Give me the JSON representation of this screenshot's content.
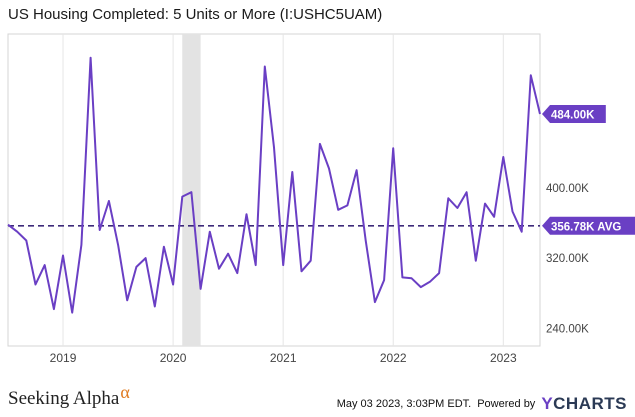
{
  "chart_data": {
    "type": "line",
    "title": "US Housing Completed: 5 Units or More (I:USHC5UAM)",
    "series": [
      {
        "values": [
          {
            "x": "2018-07",
            "y": 358
          },
          {
            "x": "2018-08",
            "y": 350
          },
          {
            "x": "2018-09",
            "y": 340
          },
          {
            "x": "2018-10",
            "y": 290
          },
          {
            "x": "2018-11",
            "y": 312
          },
          {
            "x": "2018-12",
            "y": 262
          },
          {
            "x": "2019-01",
            "y": 323
          },
          {
            "x": "2019-02",
            "y": 258
          },
          {
            "x": "2019-03",
            "y": 335
          },
          {
            "x": "2019-04",
            "y": 548
          },
          {
            "x": "2019-05",
            "y": 352
          },
          {
            "x": "2019-06",
            "y": 385
          },
          {
            "x": "2019-07",
            "y": 335
          },
          {
            "x": "2019-08",
            "y": 272
          },
          {
            "x": "2019-09",
            "y": 310
          },
          {
            "x": "2019-10",
            "y": 320
          },
          {
            "x": "2019-11",
            "y": 265
          },
          {
            "x": "2019-12",
            "y": 333
          },
          {
            "x": "2020-01",
            "y": 290
          },
          {
            "x": "2020-02",
            "y": 390
          },
          {
            "x": "2020-03",
            "y": 395
          },
          {
            "x": "2020-04",
            "y": 285
          },
          {
            "x": "2020-05",
            "y": 350
          },
          {
            "x": "2020-06",
            "y": 308
          },
          {
            "x": "2020-07",
            "y": 325
          },
          {
            "x": "2020-08",
            "y": 303
          },
          {
            "x": "2020-09",
            "y": 370
          },
          {
            "x": "2020-10",
            "y": 312
          },
          {
            "x": "2020-11",
            "y": 538
          },
          {
            "x": "2020-12",
            "y": 446
          },
          {
            "x": "2021-01",
            "y": 312
          },
          {
            "x": "2021-02",
            "y": 418
          },
          {
            "x": "2021-03",
            "y": 305
          },
          {
            "x": "2021-04",
            "y": 317
          },
          {
            "x": "2021-05",
            "y": 450
          },
          {
            "x": "2021-06",
            "y": 422
          },
          {
            "x": "2021-07",
            "y": 375
          },
          {
            "x": "2021-08",
            "y": 380
          },
          {
            "x": "2021-09",
            "y": 420
          },
          {
            "x": "2021-10",
            "y": 340
          },
          {
            "x": "2021-11",
            "y": 270
          },
          {
            "x": "2021-12",
            "y": 295
          },
          {
            "x": "2022-01",
            "y": 445
          },
          {
            "x": "2022-02",
            "y": 298
          },
          {
            "x": "2022-03",
            "y": 297
          },
          {
            "x": "2022-04",
            "y": 287
          },
          {
            "x": "2022-05",
            "y": 293
          },
          {
            "x": "2022-06",
            "y": 303
          },
          {
            "x": "2022-07",
            "y": 388
          },
          {
            "x": "2022-08",
            "y": 377
          },
          {
            "x": "2022-09",
            "y": 395
          },
          {
            "x": "2022-10",
            "y": 317
          },
          {
            "x": "2022-11",
            "y": 382
          },
          {
            "x": "2022-12",
            "y": 367
          },
          {
            "x": "2023-01",
            "y": 435
          },
          {
            "x": "2023-02",
            "y": 373
          },
          {
            "x": "2023-03",
            "y": 350
          },
          {
            "x": "2023-04",
            "y": 528
          },
          {
            "x": "2023-05",
            "y": 484
          }
        ]
      }
    ],
    "average": 356.78,
    "ylim": [
      220,
      575
    ],
    "y_ticks": [
      240,
      320,
      400
    ],
    "y_tick_labels": [
      "240.00K",
      "320.00K",
      "400.00K"
    ],
    "x_ticks": [
      "2019-01",
      "2020-01",
      "2021-01",
      "2022-01",
      "2023-01"
    ],
    "x_tick_labels": [
      "2019",
      "2020",
      "2021",
      "2022",
      "2023"
    ],
    "xlim": [
      "2018-07",
      "2023-05"
    ],
    "shaded_region": [
      "2020-02",
      "2020-04"
    ],
    "last_value_label": "484.00K",
    "avg_label": "356.78K AVG",
    "grid": "vertical",
    "colors": {
      "line": "#6a3fc4",
      "shade": "#e3e3e3",
      "grid": "#e6e6e6"
    }
  },
  "footer": {
    "brand": "Seeking Alpha",
    "brand_symbol": "α",
    "timestamp": "May 03 2023, 3:03PM EDT.",
    "powered_by": "Powered by",
    "ycharts_y": "Y",
    "ycharts_rest": "CHARTS"
  }
}
